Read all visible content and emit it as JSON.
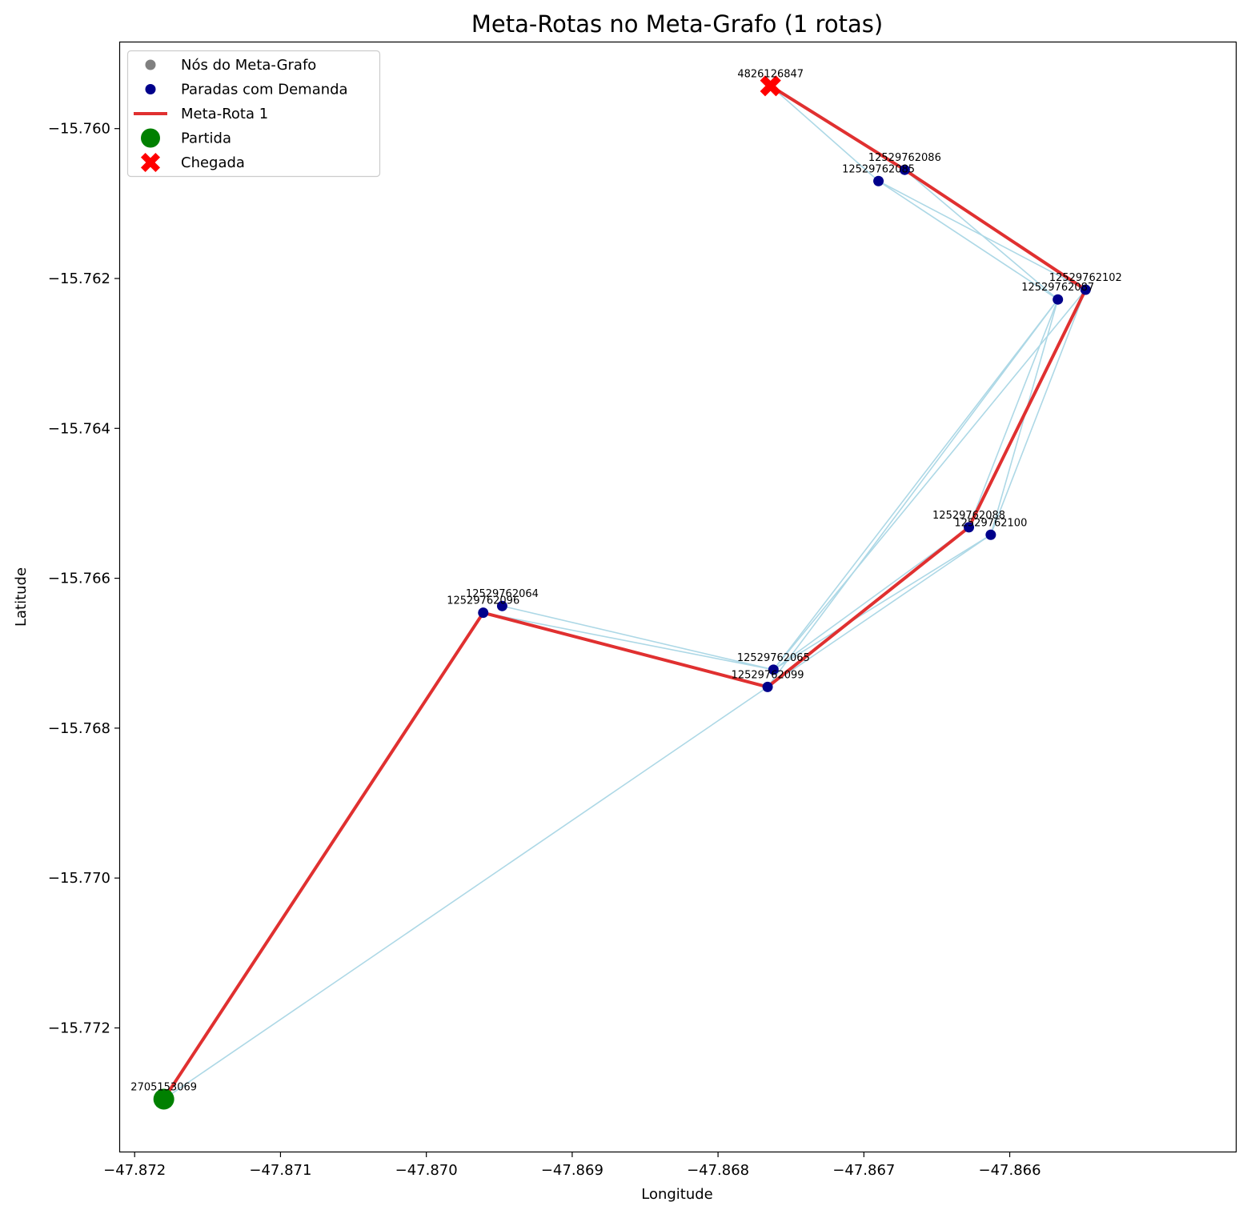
{
  "chart_data": {
    "type": "scatter",
    "title": "Meta-Rotas no Meta-Grafo (1 rotas)",
    "xlabel": "Longitude",
    "ylabel": "Latitude",
    "xlim": [
      -47.8721,
      -47.86445
    ],
    "ylim": [
      -15.77365,
      -15.75885
    ],
    "xticks": [
      -47.872,
      -47.871,
      -47.87,
      -47.869,
      -47.868,
      -47.867,
      -47.866
    ],
    "xtick_labels": [
      "−47.872",
      "−47.871",
      "−47.870",
      "−47.869",
      "−47.868",
      "−47.867",
      "−47.866"
    ],
    "yticks": [
      -15.76,
      -15.762,
      -15.764,
      -15.766,
      -15.768,
      -15.77,
      -15.772
    ],
    "ytick_labels": [
      "−15.760",
      "−15.762",
      "−15.764",
      "−15.766",
      "−15.768",
      "−15.770",
      "−15.772"
    ],
    "grid": false,
    "legend_position": "top-left",
    "legend": [
      {
        "label": "Nós do Meta-Grafo",
        "marker": "dot",
        "color": "#808080"
      },
      {
        "label": "Paradas com Demanda",
        "marker": "dot",
        "color": "#00008b"
      },
      {
        "label": "Meta-Rota 1",
        "marker": "line",
        "color": "#e03030"
      },
      {
        "label": "Partida",
        "marker": "big-dot",
        "color": "#008000"
      },
      {
        "label": "Chegada",
        "marker": "cross",
        "color": "#ff0000"
      }
    ],
    "nodes": [
      {
        "id": "2705153069",
        "x": -47.8718,
        "y": -15.77295,
        "kind": "start"
      },
      {
        "id": "4826126847",
        "x": -47.86764,
        "y": -15.75943,
        "kind": "end"
      },
      {
        "id": "12529762086",
        "x": -47.86672,
        "y": -15.76055,
        "kind": "stop"
      },
      {
        "id": "12529762085",
        "x": -47.8669,
        "y": -15.7607,
        "kind": "stop"
      },
      {
        "id": "12529762102",
        "x": -47.86548,
        "y": -15.76215,
        "kind": "stop"
      },
      {
        "id": "12529762087",
        "x": -47.86567,
        "y": -15.76228,
        "kind": "stop"
      },
      {
        "id": "12529762088",
        "x": -47.86628,
        "y": -15.76532,
        "kind": "stop"
      },
      {
        "id": "12529762100",
        "x": -47.86613,
        "y": -15.76542,
        "kind": "stop"
      },
      {
        "id": "12529762064",
        "x": -47.86948,
        "y": -15.76637,
        "kind": "stop"
      },
      {
        "id": "12529762096",
        "x": -47.86961,
        "y": -15.76646,
        "kind": "stop"
      },
      {
        "id": "12529762065",
        "x": -47.86762,
        "y": -15.76722,
        "kind": "stop"
      },
      {
        "id": "12529762099",
        "x": -47.86766,
        "y": -15.76745,
        "kind": "stop"
      }
    ],
    "edges": [
      [
        "2705153069",
        "12529762096"
      ],
      [
        "2705153069",
        "12529762099"
      ],
      [
        "12529762096",
        "12529762065"
      ],
      [
        "12529762064",
        "12529762065"
      ],
      [
        "12529762096",
        "12529762099"
      ],
      [
        "12529762065",
        "12529762087"
      ],
      [
        "12529762065",
        "12529762102"
      ],
      [
        "12529762065",
        "12529762088"
      ],
      [
        "12529762065",
        "12529762100"
      ],
      [
        "12529762099",
        "12529762087"
      ],
      [
        "12529762099",
        "12529762100"
      ],
      [
        "12529762088",
        "12529762087"
      ],
      [
        "12529762100",
        "12529762087"
      ],
      [
        "12529762100",
        "12529762102"
      ],
      [
        "12529762087",
        "12529762085"
      ],
      [
        "12529762087",
        "12529762086"
      ],
      [
        "12529762102",
        "12529762085"
      ],
      [
        "12529762085",
        "4826126847"
      ],
      [
        "12529762086",
        "4826126847"
      ]
    ],
    "series": [
      {
        "name": "Meta-Rota 1",
        "path": [
          "2705153069",
          "12529762096",
          "12529762099",
          "12529762088",
          "12529762102",
          "12529762086",
          "4826126847"
        ]
      }
    ],
    "colors": {
      "edge": "#add8e6",
      "stop": "#00008b",
      "route": "#e03030",
      "start": "#008000",
      "end": "#ff0000"
    }
  }
}
